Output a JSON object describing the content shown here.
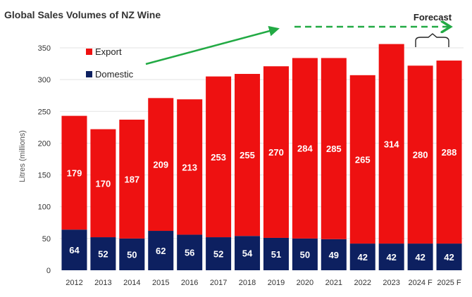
{
  "chart_data": {
    "type": "bar",
    "stacked": true,
    "title": "Global Sales Volumes of NZ Wine",
    "ylabel": "Litres (millions)",
    "xlabel": "",
    "ylim": [
      0,
      350
    ],
    "yticks": [
      0,
      50,
      100,
      150,
      200,
      250,
      300,
      350
    ],
    "categories": [
      "2012",
      "2013",
      "2014",
      "2015",
      "2016",
      "2017",
      "2018",
      "2019",
      "2020",
      "2021",
      "2022",
      "2023",
      "2024 F",
      "2025 F"
    ],
    "series": [
      {
        "name": "Domestic",
        "color": "#0d2060",
        "values": [
          64,
          52,
          50,
          62,
          56,
          52,
          54,
          51,
          50,
          49,
          42,
          42,
          42,
          42
        ]
      },
      {
        "name": "Export",
        "color": "#ee1111",
        "values": [
          179,
          170,
          187,
          209,
          213,
          253,
          255,
          270,
          284,
          285,
          265,
          314,
          280,
          288
        ]
      }
    ],
    "legend": {
      "position": "top-left",
      "order": [
        "Export",
        "Domestic"
      ]
    },
    "annotations": {
      "forecast_label": "Forecast",
      "forecast_categories": [
        "2024 F",
        "2025 F"
      ],
      "trend_arrow_color": "#22aa44"
    },
    "grid": true
  }
}
